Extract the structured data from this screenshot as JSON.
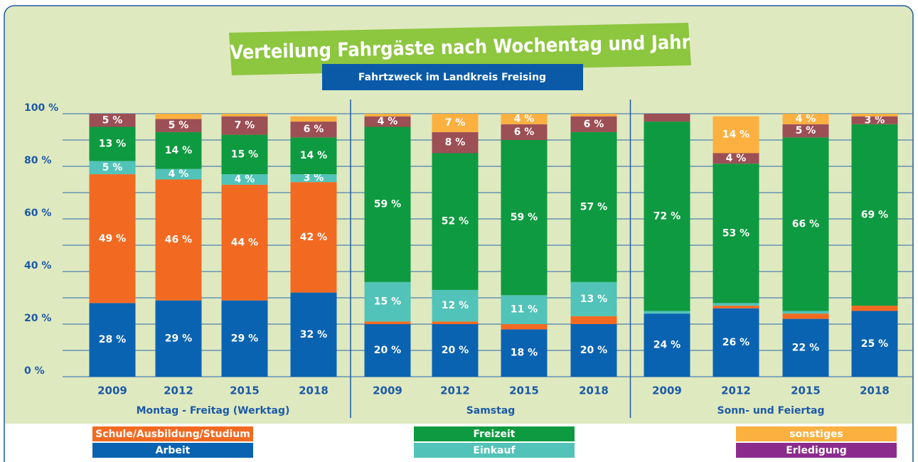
{
  "chart_data": {
    "type": "stacked_bar",
    "title": "Verteilung Fahrgäste nach Wochentag und Jahr",
    "subtitle": "Fahrtzweck im Landkreis Freising",
    "groups": [
      "Montag - Freitag (Werktag)",
      "Samstag",
      "Sonn- und Feiertag"
    ],
    "categories": [
      "2009",
      "2012",
      "2015",
      "2018",
      "2009",
      "2012",
      "2015",
      "2018",
      "2009",
      "2012",
      "2015",
      "2018"
    ],
    "series": [
      {
        "name": "Arbeit",
        "color": "#0a63b1",
        "values": [
          28,
          29,
          29,
          32,
          20,
          20,
          18,
          20,
          24,
          26,
          22,
          25
        ],
        "value_labels": [
          "28 %",
          "29 %",
          "29 %",
          "32 %",
          "20 %",
          "20 %",
          "18 %",
          "20 %",
          "24 %",
          "26 %",
          "22 %",
          "25 %"
        ]
      },
      {
        "name": "Schule/Ausbildung/Studium",
        "color": "#f26a22",
        "values": [
          49,
          46,
          44,
          42,
          1,
          1,
          2,
          3,
          0,
          1,
          2,
          2
        ],
        "value_labels": [
          "49 %",
          "46 %",
          "44 %",
          "42 %",
          null,
          null,
          null,
          null,
          null,
          null,
          null,
          null
        ]
      },
      {
        "name": "Einkauf",
        "color": "#52c3b8",
        "values": [
          5,
          4,
          4,
          3,
          15,
          12,
          11,
          13,
          1,
          1,
          1,
          0
        ],
        "value_labels": [
          "5 %",
          "4 %",
          "4 %",
          "3 %",
          "15 %",
          "12 %",
          "11 %",
          "13 %",
          null,
          null,
          null,
          null
        ]
      },
      {
        "name": "Freizeit",
        "color": "#0e9a40",
        "values": [
          13,
          14,
          15,
          14,
          59,
          52,
          59,
          57,
          72,
          53,
          66,
          69
        ],
        "value_labels": [
          "13 %",
          "14 %",
          "15 %",
          "14 %",
          "59 %",
          "52 %",
          "59 %",
          "57 %",
          "72 %",
          "53 %",
          "66 %",
          "69 %"
        ]
      },
      {
        "name": "Erledigung",
        "color": "#9c4f55",
        "legend_color": "#8b2c8c",
        "values": [
          5,
          5,
          7,
          6,
          4,
          8,
          6,
          6,
          3,
          4,
          5,
          3
        ],
        "value_labels": [
          "5 %",
          "5 %",
          "7 %",
          "6 %",
          "4 %",
          "8 %",
          "6 %",
          "6 %",
          null,
          "4 %",
          "5 %",
          "3 %"
        ]
      },
      {
        "name": "sonstiges",
        "color": "#fbb040",
        "values": [
          0,
          2,
          1,
          2,
          1,
          7,
          4,
          1,
          0,
          14,
          4,
          1
        ],
        "value_labels": [
          null,
          null,
          null,
          null,
          null,
          "7 %",
          "4 %",
          null,
          null,
          "14 %",
          "4 %",
          null
        ]
      }
    ],
    "ylim": [
      0,
      100
    ],
    "yticks": [
      {
        "value": 0,
        "label": "0 %"
      },
      {
        "value": 20,
        "label": "20 %"
      },
      {
        "value": 40,
        "label": "40 %"
      },
      {
        "value": 60,
        "label": "60 %"
      },
      {
        "value": 80,
        "label": "80 %"
      },
      {
        "value": 100,
        "label": "100 %"
      }
    ],
    "minor_yticks": [
      10,
      30,
      50,
      70,
      90
    ],
    "grid": true
  }
}
